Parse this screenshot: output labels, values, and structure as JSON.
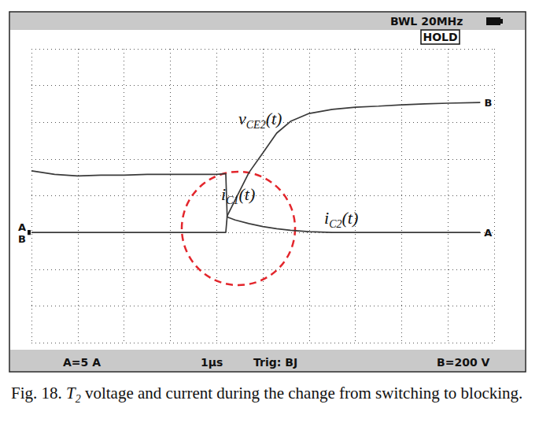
{
  "chart_data": {
    "type": "line",
    "caption": {
      "text": "Fig. 18. ",
      "italic": "T",
      "subscript": "2",
      "suffix": " voltage and current during the change from switching to blocking."
    },
    "status_texts": [
      "BWL 20MHz",
      "HOLD"
    ],
    "scale_texts": [
      "A=5 A",
      "1µs",
      "Trig: BJ",
      "B=200 V"
    ],
    "annotations": [
      {
        "text": "v",
        "subscript": "CE2",
        "suffix": "(t)"
      },
      {
        "text": "i",
        "subscript": "C1",
        "suffix": "(t)"
      },
      {
        "text": "i",
        "subscript": "C2",
        "suffix": "(t)"
      }
    ],
    "x": [
      0,
      0.5,
      1,
      1.5,
      2,
      2.5,
      3,
      3.5,
      4,
      4.2,
      4.23,
      4.4,
      4.7,
      5.0,
      5.3,
      5.6,
      6.0,
      6.5,
      7,
      7.5,
      8,
      8.5,
      9,
      9.7
    ],
    "series": [
      {
        "name": "A",
        "color": "#3a3a3a",
        "values": [
          8.4,
          7.9,
          7.7,
          7.8,
          7.8,
          7.9,
          7.9,
          7.9,
          7.9,
          8.0,
          2.1,
          1.7,
          1.2,
          0.8,
          0.5,
          0.3,
          0.1,
          0,
          0,
          0,
          0,
          0,
          0,
          0
        ]
      },
      {
        "name": "B",
        "color": "#3a3a3a",
        "axis": "y2",
        "values": [
          0,
          0,
          0,
          0,
          0,
          0,
          0,
          0,
          0,
          0,
          90,
          176,
          326,
          433,
          541,
          605,
          648,
          670,
          682,
          688,
          695,
          700,
          704,
          708
        ]
      }
    ],
    "xlim": [
      0,
      10
    ],
    "xticks": [
      0,
      1,
      2,
      3,
      4,
      5,
      6,
      7,
      8,
      9,
      10
    ],
    "ylim": [
      -15,
      25
    ],
    "yticks": [
      -15,
      -10,
      -5,
      0,
      5,
      10,
      15,
      20,
      25
    ],
    "y2lim": [
      -600,
      1000
    ],
    "y2ticks": [
      -600,
      -400,
      -200,
      0,
      200,
      400,
      600,
      800,
      1000
    ],
    "tick_labels": false,
    "grid": true
  }
}
